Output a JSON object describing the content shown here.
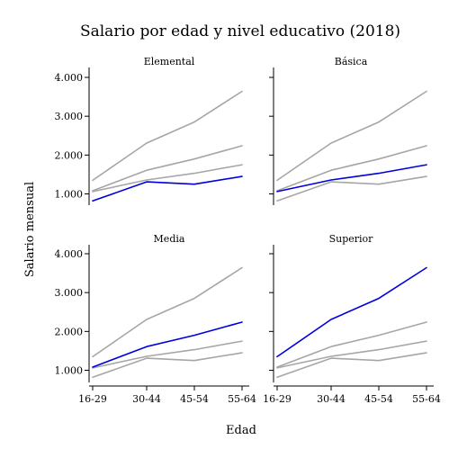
{
  "chart_data": {
    "type": "line",
    "title": "Salario por edad y nivel educativo (2018)",
    "xlabel": "Edad",
    "ylabel": "Salario mensual",
    "categories": [
      "16-29",
      "30-44",
      "45-54",
      "55-64"
    ],
    "yticks": [
      1000,
      2000,
      3000,
      4000
    ],
    "ytick_labels": [
      "1.000",
      "2.000",
      "3.000",
      "4.000"
    ],
    "ylim": [
      600,
      4200
    ],
    "colors": {
      "highlight": "#0000dd",
      "other": "#a6a6a6"
    },
    "series": [
      {
        "name": "Elemental",
        "values": [
          820,
          1310,
          1250,
          1450
        ]
      },
      {
        "name": "Básica",
        "values": [
          1060,
          1360,
          1530,
          1750
        ]
      },
      {
        "name": "Media",
        "values": [
          1080,
          1610,
          1900,
          2240
        ]
      },
      {
        "name": "Superior",
        "values": [
          1350,
          2310,
          2850,
          3640
        ]
      }
    ],
    "panels": [
      {
        "title": "Elemental",
        "highlight": "Elemental"
      },
      {
        "title": "Básica",
        "highlight": "Básica"
      },
      {
        "title": "Media",
        "highlight": "Media"
      },
      {
        "title": "Superior",
        "highlight": "Superior"
      }
    ]
  }
}
